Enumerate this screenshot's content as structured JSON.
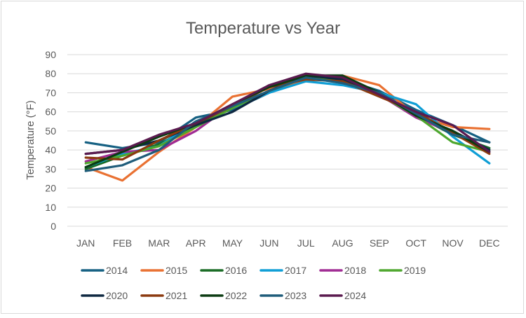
{
  "chart_data": {
    "type": "line",
    "title": "Temperature vs Year",
    "xlabel": "",
    "ylabel": "Temperature (°F)",
    "ylim": [
      0,
      90
    ],
    "yticks": [
      0,
      10,
      20,
      30,
      40,
      50,
      60,
      70,
      80,
      90
    ],
    "grid": true,
    "legend": "bottom",
    "categories": [
      "JAN",
      "FEB",
      "MAR",
      "APR",
      "MAY",
      "JUN",
      "JUL",
      "AUG",
      "SEP",
      "OCT",
      "NOV",
      "DEC"
    ],
    "series": [
      {
        "name": "2014",
        "color": "#156082",
        "values": [
          44,
          41,
          44,
          57,
          61,
          70,
          78,
          77,
          71,
          61,
          53,
          44
        ]
      },
      {
        "name": "2015",
        "color": "#E97132",
        "values": [
          31,
          24,
          39,
          52,
          68,
          72,
          76,
          79,
          74,
          58,
          52,
          51
        ]
      },
      {
        "name": "2016",
        "color": "#196B24",
        "values": [
          30,
          37,
          43,
          53,
          63,
          71,
          78,
          77,
          70,
          58,
          48,
          41
        ]
      },
      {
        "name": "2017",
        "color": "#0F9ED5",
        "values": [
          31,
          38,
          42,
          55,
          62,
          70,
          76,
          74,
          70,
          64,
          47,
          33
        ]
      },
      {
        "name": "2018",
        "color": "#A02B93",
        "values": [
          34,
          39,
          40,
          50,
          64,
          73,
          78,
          76,
          69,
          57,
          49,
          39
        ]
      },
      {
        "name": "2019",
        "color": "#4EA72E",
        "values": [
          33,
          37,
          42,
          52,
          62,
          71,
          78,
          77,
          69,
          58,
          44,
          39
        ]
      },
      {
        "name": "2020",
        "color": "#0E2841",
        "values": [
          38,
          40,
          45,
          53,
          60,
          71,
          79,
          77,
          70,
          58,
          50,
          40
        ]
      },
      {
        "name": "2021",
        "color": "#8B3A0F",
        "values": [
          36,
          35,
          45,
          54,
          63,
          73,
          77,
          76,
          68,
          60,
          49,
          38
        ]
      },
      {
        "name": "2022",
        "color": "#0B3B12",
        "values": [
          31,
          39,
          47,
          54,
          64,
          73,
          79,
          79,
          70,
          58,
          50,
          39
        ]
      },
      {
        "name": "2023",
        "color": "#1F5C7A",
        "values": [
          29,
          32,
          40,
          55,
          63,
          71,
          78,
          75,
          70,
          59,
          48,
          44
        ]
      },
      {
        "name": "2024",
        "color": "#5A1A4F",
        "values": [
          38,
          40,
          48,
          54,
          64,
          74,
          80,
          78,
          69,
          60,
          53,
          39
        ]
      }
    ]
  }
}
